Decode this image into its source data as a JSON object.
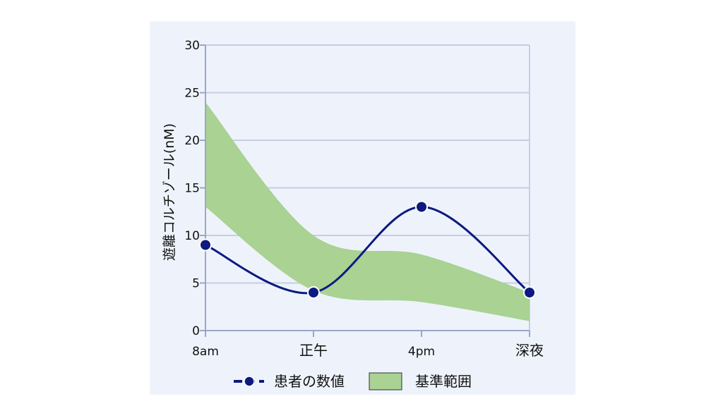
{
  "chart_data": {
    "type": "line",
    "ylabel": "遊離コルチゾール(nM)",
    "xlabel": "",
    "categories": [
      "8am",
      "正午",
      "4pm",
      "深夜"
    ],
    "ylim": [
      0,
      30
    ],
    "yticks": [
      0,
      5,
      10,
      15,
      20,
      25,
      30
    ],
    "grid": true,
    "legend_position": "bottom",
    "series": [
      {
        "name": "患者の数値",
        "type": "line",
        "color": "#0d1a80",
        "values": [
          9,
          4,
          13,
          4
        ]
      }
    ],
    "band": {
      "name": "基準範囲",
      "color": "#a9d293",
      "upper": [
        24,
        10,
        8,
        4
      ],
      "lower": [
        13,
        4.2,
        3,
        1
      ]
    }
  }
}
